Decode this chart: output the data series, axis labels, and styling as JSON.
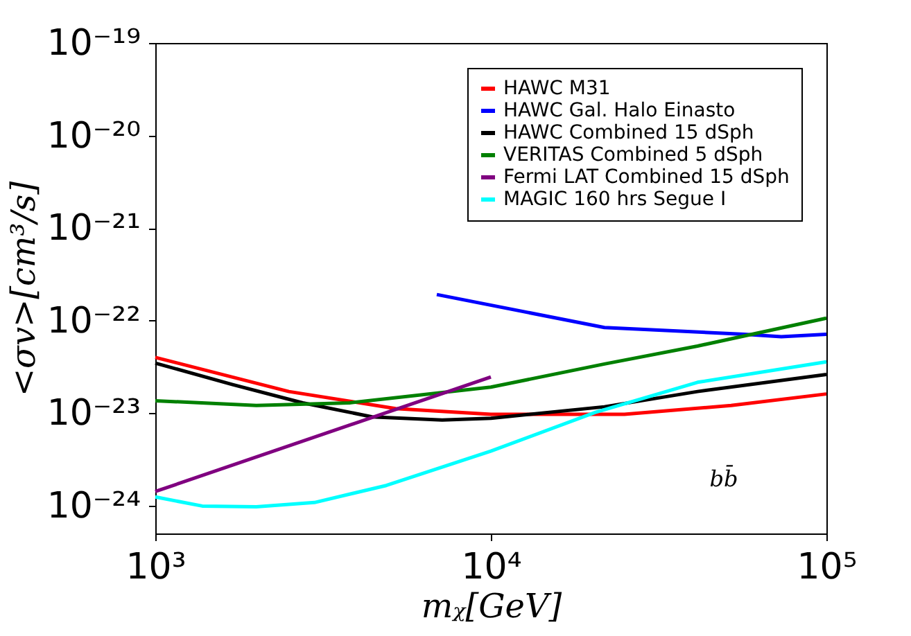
{
  "chart_data": {
    "type": "line",
    "xlabel": "mᵪ[GeV]",
    "ylabel": "<σv>[cm³/s]",
    "log": "xy",
    "grid": false,
    "legend": "top right",
    "line_style": "solid",
    "marker": "none",
    "xlim": [
      1000,
      100000
    ],
    "xticks": [
      {
        "value": 1000,
        "label": "10³"
      },
      {
        "value": 10000,
        "label": "10⁴"
      },
      {
        "value": 100000,
        "label": "10⁵"
      }
    ],
    "ylim": [
      5e-25,
      1e-19
    ],
    "yticks": [
      {
        "value": 1e-24,
        "label": "10⁻²⁴"
      },
      {
        "value": 1e-23,
        "label": "10⁻²³"
      },
      {
        "value": 1e-22,
        "label": "10⁻²²"
      },
      {
        "value": 1e-21,
        "label": "10⁻²¹"
      },
      {
        "value": 1e-20,
        "label": "10⁻²⁰"
      },
      {
        "value": 1e-19,
        "label": "10⁻¹⁹"
      }
    ],
    "annotations": [
      "bb̄"
    ],
    "series": [
      {
        "name": "HAWC M31",
        "color": "#ff0000",
        "x": [
          1000,
          2500,
          5200,
          10000,
          25000,
          52000,
          100000
        ],
        "values": [
          4e-23,
          1.71e-23,
          1.12e-23,
          9.7e-24,
          9.7e-24,
          1.21e-23,
          1.61e-23
        ]
      },
      {
        "name": "HAWC Gal. Halo Einasto",
        "color": "#0000ff",
        "x": [
          6900,
          21800,
          56900,
          73400,
          100000
        ],
        "values": [
          1.91e-22,
          8.4e-23,
          7.1e-23,
          6.7e-23,
          7.1e-23
        ]
      },
      {
        "name": "HAWC Combined 15 dSph",
        "color": "#000000",
        "x": [
          1000,
          1700,
          2750,
          4430,
          7160,
          10000,
          21800,
          41300,
          100000
        ],
        "values": [
          3.47e-23,
          2.03e-23,
          1.29e-23,
          9.1e-24,
          8.4e-24,
          8.8e-24,
          1.17e-23,
          1.71e-23,
          2.61e-23
        ]
      },
      {
        "name": "VERITAS Combined 5 dSph",
        "color": "#008000",
        "x": [
          1000,
          2000,
          3790,
          10000,
          21800,
          41300,
          100000
        ],
        "values": [
          1.36e-23,
          1.21e-23,
          1.29e-23,
          1.91e-23,
          3.39e-23,
          5.3e-23,
          1.06e-22
        ]
      },
      {
        "name": "Fermi LAT Combined 15 dSph",
        "color": "#800080",
        "x": [
          1000,
          10000
        ],
        "values": [
          1.42e-24,
          2.46e-23
        ]
      },
      {
        "name": "MAGIC 160 hrs Segue I",
        "color": "#00ffff",
        "x": [
          1000,
          1380,
          2000,
          2980,
          4880,
          10000,
          20500,
          41300,
          100000
        ],
        "values": [
          1.24e-24,
          9.9e-25,
          9.7e-25,
          1.08e-24,
          1.65e-24,
          3.88e-24,
          1.02e-23,
          2.15e-23,
          3.58e-23
        ]
      }
    ]
  }
}
